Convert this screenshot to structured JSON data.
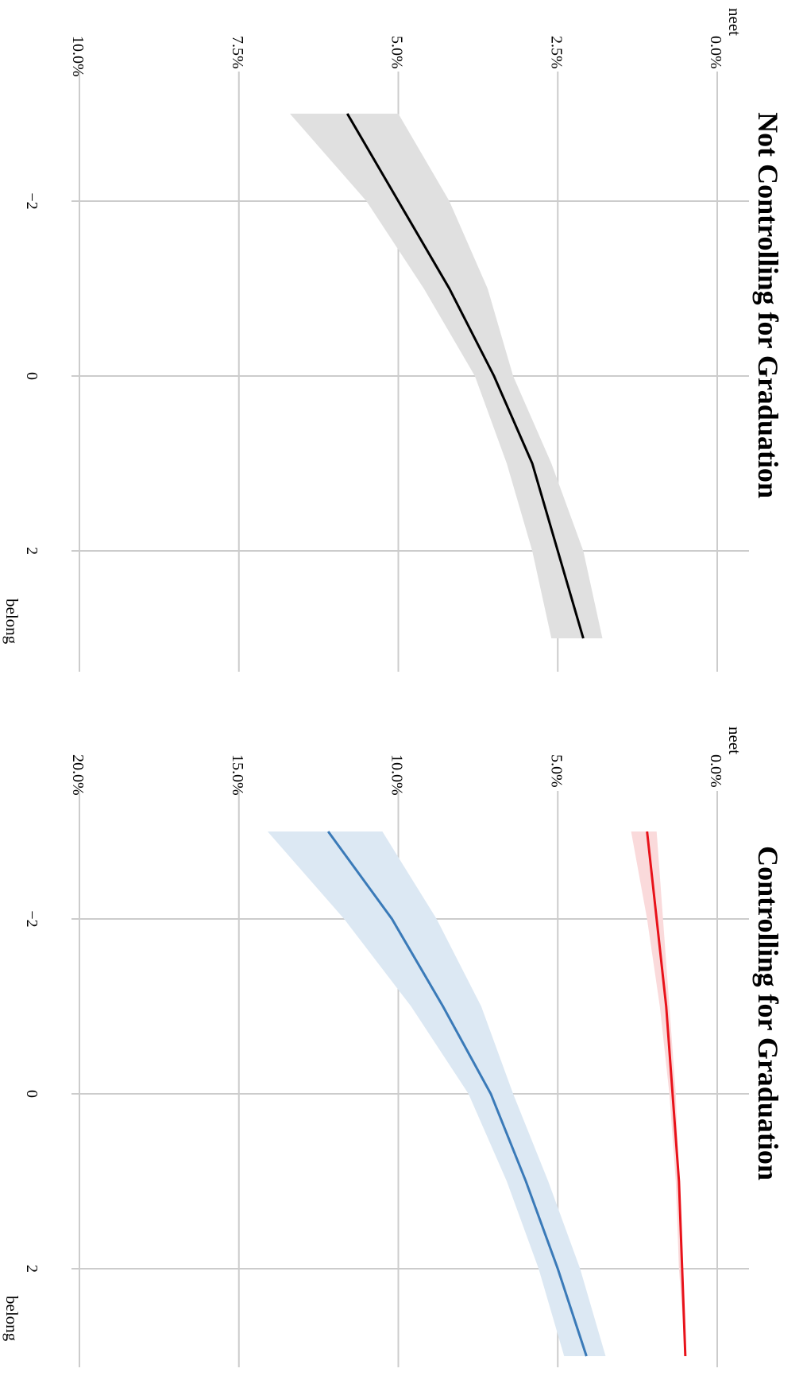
{
  "chart_data": [
    {
      "type": "line",
      "title": "Not Controlling for Graduation",
      "xlabel": "belong",
      "ylabel": "neet",
      "xlim": [
        -3.6,
        3.3
      ],
      "ylim": [
        0,
        10
      ],
      "x_ticks": [
        -2,
        0,
        2
      ],
      "x_tick_labels": [
        "−2",
        "0",
        "2"
      ],
      "y_ticks": [
        0,
        2.5,
        5,
        7.5,
        10
      ],
      "y_tick_labels": [
        "0.0%",
        "2.5%",
        "5.0%",
        "7.5%",
        "10.0%"
      ],
      "grid": true,
      "legend": "none",
      "series": [
        {
          "color": "#000000",
          "band_color": "#e0e0e0",
          "x": [
            -3,
            -2,
            -1,
            0,
            1,
            2,
            3
          ],
          "y": [
            5.8,
            5.0,
            4.2,
            3.5,
            2.9,
            2.5,
            2.1
          ],
          "lower": [
            5.0,
            4.2,
            3.6,
            3.2,
            2.6,
            2.1,
            1.8
          ],
          "upper": [
            6.7,
            5.5,
            4.6,
            3.8,
            3.3,
            2.9,
            2.6
          ]
        }
      ]
    },
    {
      "type": "line",
      "title": "Controlling for Graduation",
      "xlabel": "belong",
      "ylabel": "neet",
      "xlim": [
        -3.6,
        3.3
      ],
      "ylim": [
        0,
        20
      ],
      "x_ticks": [
        -2,
        0,
        2
      ],
      "x_tick_labels": [
        "−2",
        "0",
        "2"
      ],
      "y_ticks": [
        0,
        5,
        10,
        15,
        20
      ],
      "y_tick_labels": [
        "0.0%",
        "5.0%",
        "10.0%",
        "15.0%",
        "20.0%"
      ],
      "grid": true,
      "legend": "none",
      "series": [
        {
          "color": "#3a7ab8",
          "band_color": "#dce8f3",
          "x": [
            -3,
            -2,
            -1,
            0,
            1,
            2,
            3
          ],
          "y": [
            12.2,
            10.2,
            8.6,
            7.1,
            6.0,
            5.0,
            4.1
          ],
          "lower": [
            10.5,
            8.8,
            7.4,
            6.4,
            5.3,
            4.3,
            3.5
          ],
          "upper": [
            14.1,
            11.7,
            9.6,
            7.8,
            6.6,
            5.6,
            4.8
          ]
        },
        {
          "color": "#e8121a",
          "band_color": "#fadadb",
          "x": [
            -3,
            -2,
            -1,
            0,
            1,
            2,
            3
          ],
          "y": [
            2.2,
            1.9,
            1.6,
            1.4,
            1.2,
            1.1,
            1.0
          ],
          "lower": [
            1.9,
            1.7,
            1.5,
            1.3,
            1.2,
            1.1,
            1.0
          ],
          "upper": [
            2.7,
            2.2,
            1.8,
            1.5,
            1.3,
            1.2,
            1.0
          ]
        }
      ]
    }
  ]
}
